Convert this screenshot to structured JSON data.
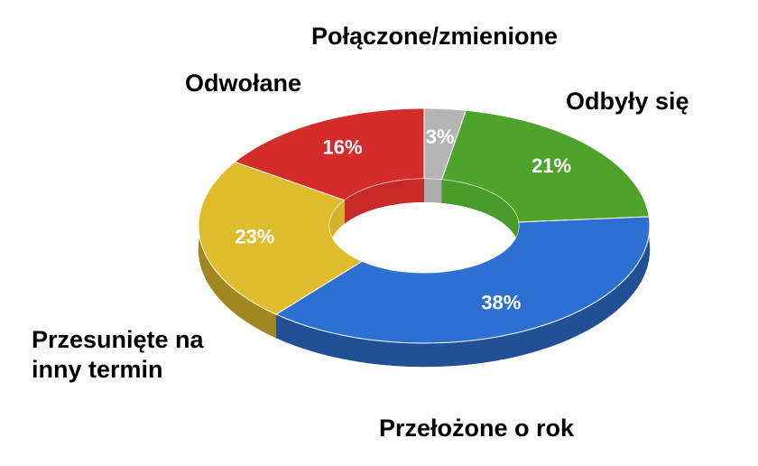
{
  "chart_data": {
    "type": "pie",
    "donut": true,
    "categories": [
      "Połączone/zmienione",
      "Odbyły się",
      "Przełożone o rok",
      "Przesunięte na inny termin",
      "Odwołane"
    ],
    "values": [
      3,
      21,
      38,
      23,
      16
    ],
    "value_labels": [
      "3%",
      "21%",
      "38%",
      "23%",
      "16%"
    ],
    "colors": [
      "#b4b4b4",
      "#4ea32b",
      "#2e6fd2",
      "#dfbc2b",
      "#d42b2b"
    ]
  }
}
